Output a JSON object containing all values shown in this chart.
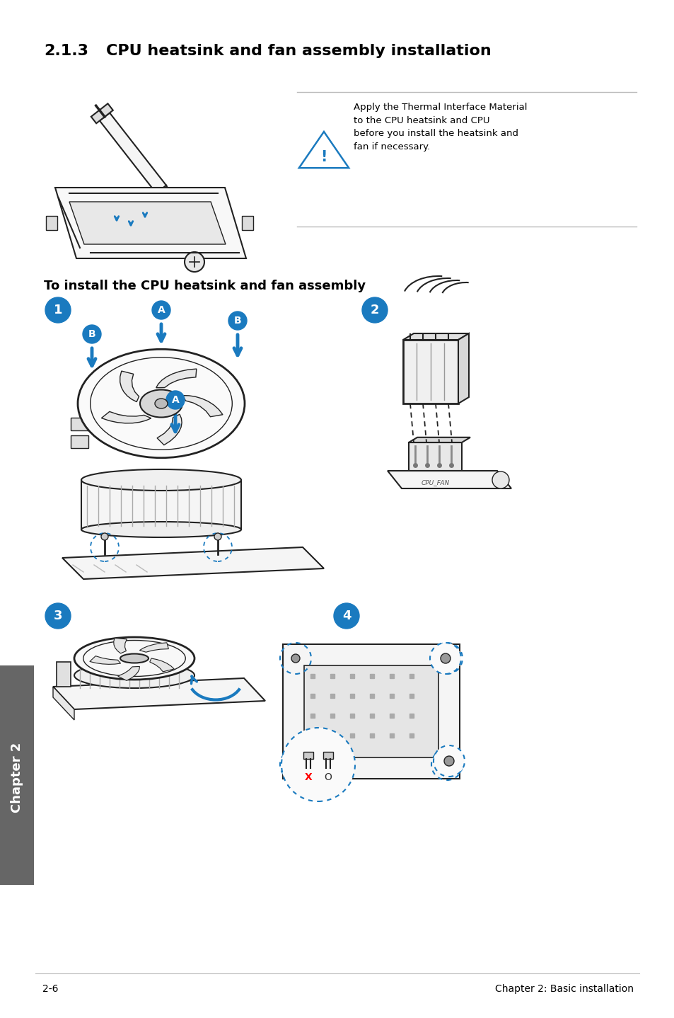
{
  "title_num": "2.1.3",
  "title_text": "CPU heatsink and fan assembly installation",
  "section_label": "To install the CPU heatsink and fan assembly",
  "warning_text": "Apply the Thermal Interface Material\nto the CPU heatsink and CPU\nbefore you install the heatsink and\nfan if necessary.",
  "footer_left": "2-6",
  "footer_right": "Chapter 2: Basic installation",
  "chapter_label": "Chapter 2",
  "bg_color": "#ffffff",
  "text_color": "#000000",
  "blue_color": "#1a7abf",
  "side_tab_color": "#666666",
  "warn_line_color": "#bbbbbb",
  "line_color": "#222222",
  "light_gray": "#eeeeee",
  "mid_gray": "#cccccc",
  "dark_gray": "#888888"
}
